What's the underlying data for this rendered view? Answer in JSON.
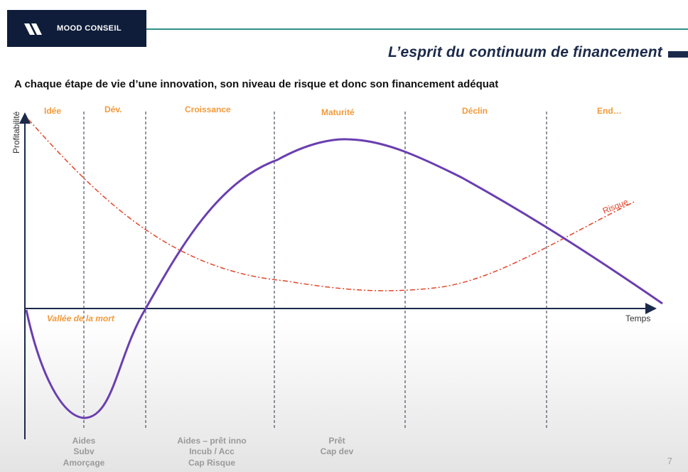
{
  "header": {
    "brand": "MOOD CONSEIL",
    "title": "L’esprit du continuum de financement",
    "subtitle": "A chaque étape de vie d’une innovation, son niveau de risque et donc son financement adéquat"
  },
  "diagram": {
    "y_axis_label": "Profitabilité",
    "x_axis_label": "Temps",
    "phases": [
      "Idée",
      "Dév.",
      "Croissance",
      "Maturité",
      "Déclin",
      "End…"
    ],
    "valley_label": "Vallée de la mort",
    "risk_label": "Risque",
    "funding": {
      "group1": [
        "Aides",
        "Subv",
        "Amorçage"
      ],
      "group2": [
        "Aides – prêt inno",
        "Incub / Acc",
        "Cap Risque"
      ],
      "group3": [
        "Prêt",
        "Cap dev"
      ]
    },
    "colors": {
      "profit_curve": "#6a3fb0",
      "risk_curve": "#e2462a",
      "phase_labels": "#f29a3a",
      "axis": "#1b2a4a"
    }
  },
  "footer": {
    "page_number": "7"
  }
}
